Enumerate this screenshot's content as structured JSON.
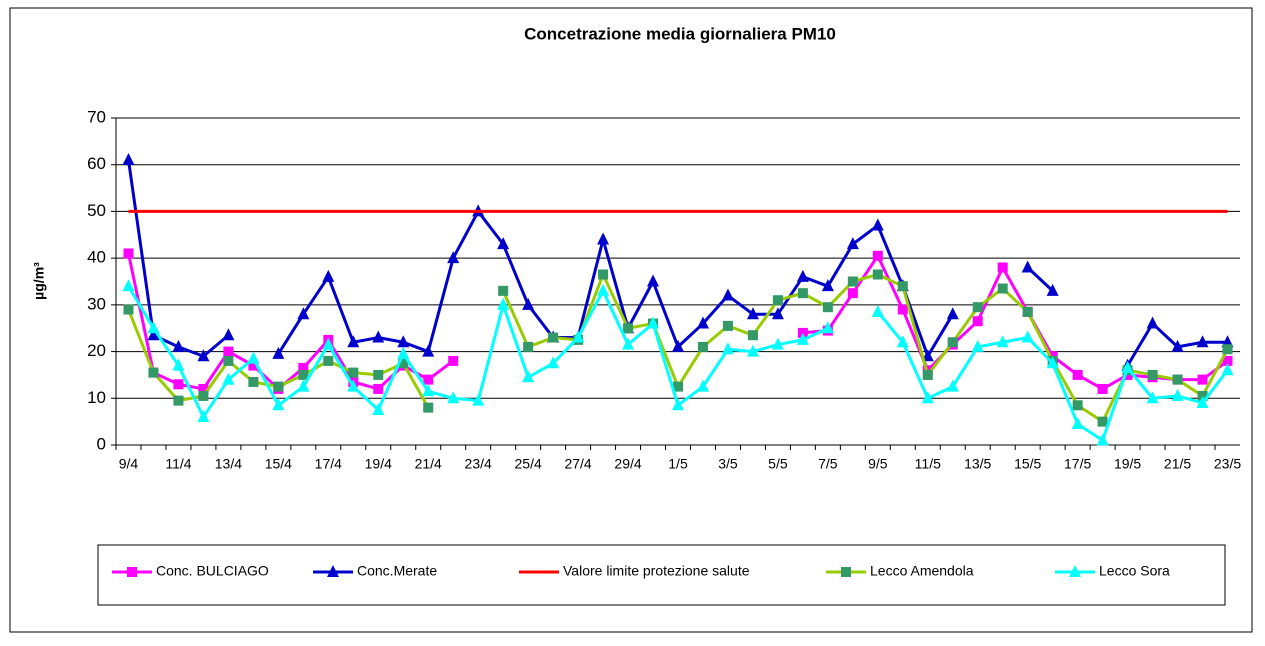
{
  "chart_data": {
    "type": "line",
    "title": "Concetrazione media giornaliera PM10",
    "y_label": "µg/m³",
    "categories": [
      "9/4",
      null,
      "11/4",
      null,
      "13/4",
      null,
      "15/4",
      null,
      "17/4",
      null,
      "19/4",
      null,
      "21/4",
      null,
      "23/4",
      null,
      "25/4",
      null,
      "27/4",
      null,
      "29/4",
      null,
      "1/5",
      null,
      "3/5",
      null,
      "5/5",
      null,
      "7/5",
      null,
      "9/5",
      null,
      "11/5",
      null,
      "13/5",
      null,
      "15/5",
      null,
      "17/5",
      null,
      "19/5",
      null,
      "21/5",
      null,
      "23/5"
    ],
    "ylim": [
      0,
      70
    ],
    "yticks": [
      0,
      10,
      20,
      30,
      40,
      50,
      60,
      70
    ],
    "grid": true,
    "series": [
      {
        "name": "Conc. BULCIAGO",
        "color": "#ff00ff",
        "marker": "square",
        "marker_color": "#ff00ff",
        "values": [
          41,
          15.5,
          13,
          12,
          20,
          17,
          12,
          16.5,
          22.5,
          13.5,
          12,
          17,
          14,
          18,
          null,
          null,
          null,
          null,
          null,
          null,
          null,
          null,
          null,
          null,
          null,
          null,
          null,
          24,
          24.5,
          32.5,
          40.5,
          29,
          16,
          21.5,
          26.5,
          38,
          28.5,
          19,
          15,
          12,
          15,
          14.5,
          14,
          14,
          18
        ]
      },
      {
        "name": "Conc.Merate",
        "color": "#0000cc",
        "marker": "triangle",
        "marker_color": "#0000cc",
        "values": [
          61,
          23.5,
          21,
          19,
          23.5,
          null,
          19.5,
          28,
          36,
          22,
          23,
          22,
          20,
          40,
          50,
          43,
          30,
          23,
          23,
          44,
          25,
          35,
          21,
          26,
          32,
          28,
          28,
          36,
          34,
          43,
          47,
          34,
          19,
          28,
          null,
          null,
          38,
          33,
          null,
          null,
          17,
          26,
          21,
          22,
          22
        ]
      },
      {
        "name": "Valore limite protezione salute",
        "color": "#ff0000",
        "marker": "none",
        "marker_color": "#ff0000",
        "values": [
          50,
          50,
          50,
          50,
          50,
          50,
          50,
          50,
          50,
          50,
          50,
          50,
          50,
          50,
          50,
          50,
          50,
          50,
          50,
          50,
          50,
          50,
          50,
          50,
          50,
          50,
          50,
          50,
          50,
          50,
          50,
          50,
          50,
          50,
          50,
          50,
          50,
          50,
          50,
          50,
          50,
          50,
          50,
          50,
          50
        ]
      },
      {
        "name": "Lecco Amendola",
        "color": "#99cc00",
        "marker": "square",
        "marker_color": "#339966",
        "values": [
          29,
          15.5,
          9.5,
          10.5,
          18,
          13.5,
          12.5,
          15,
          18,
          15.5,
          15,
          17.5,
          8,
          null,
          null,
          33,
          21,
          23,
          22.5,
          36.5,
          25,
          26,
          12.5,
          21,
          25.5,
          23.5,
          31,
          32.5,
          29.5,
          35,
          36.5,
          34,
          15,
          22,
          29.5,
          33.5,
          28.5,
          18,
          8.5,
          5,
          16,
          15,
          14,
          10.5,
          20.5
        ]
      },
      {
        "name": "Lecco Sora",
        "color": "#00ffff",
        "marker": "triangle",
        "marker_color": "#00ffff",
        "values": [
          34,
          25,
          17,
          6,
          14,
          18.5,
          8.5,
          12.5,
          21.5,
          12.5,
          7.5,
          19.5,
          11.5,
          10,
          9.5,
          30,
          14.5,
          17.5,
          23,
          33,
          21.5,
          26,
          8.5,
          12.5,
          20.5,
          20,
          21.5,
          22.5,
          25,
          null,
          28.5,
          22,
          10,
          12.5,
          21,
          22,
          23,
          17.5,
          4.5,
          1,
          16.5,
          10,
          10.5,
          9,
          16
        ]
      }
    ]
  }
}
